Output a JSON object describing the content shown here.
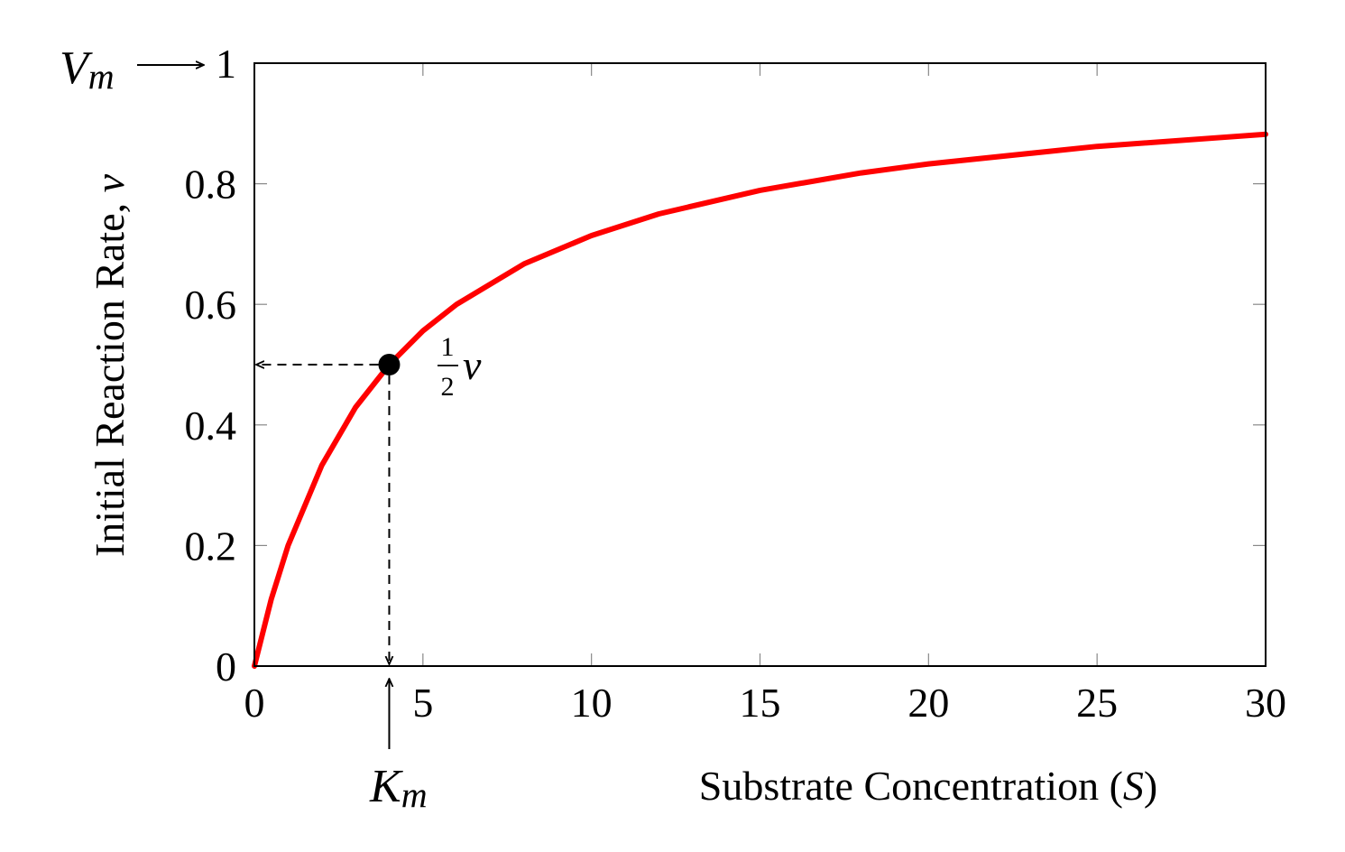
{
  "chart_data": {
    "type": "line",
    "xlabel": "Substrate Concentration (",
    "xlabel_var": "S",
    "xlabel_close": ")",
    "ylabel": "Initial Reaction Rate, ",
    "ylabel_var": "v",
    "xlim": [
      0,
      30
    ],
    "ylim": [
      0,
      1
    ],
    "x_ticks": [
      0,
      5,
      10,
      15,
      20,
      25,
      30
    ],
    "x_tick_labels": [
      "0",
      "5",
      "10",
      "15",
      "20",
      "25",
      "30"
    ],
    "y_ticks": [
      0,
      0.2,
      0.4,
      0.6,
      0.8,
      1
    ],
    "y_tick_labels": [
      "0",
      "0.2",
      "0.4",
      "0.6",
      "0.8",
      "1"
    ],
    "grid": false,
    "series": [
      {
        "color": "#ff0000",
        "x": [
          0,
          0.5,
          1,
          2,
          3,
          4,
          5,
          6,
          8,
          10,
          12,
          15,
          18,
          20,
          25,
          30
        ],
        "y": [
          0,
          0.111,
          0.2,
          0.333,
          0.429,
          0.5,
          0.556,
          0.6,
          0.667,
          0.714,
          0.75,
          0.789,
          0.818,
          0.833,
          0.862,
          0.882
        ]
      }
    ],
    "marker_point": {
      "x": 4,
      "y": 0.5
    },
    "annotations": {
      "half_v_num": "1",
      "half_v_den": "2",
      "half_v_var": "v",
      "km_main": "K",
      "km_sub": "m",
      "vm_main": "V",
      "vm_sub": "m"
    },
    "colors": {
      "curve": "#ff0000",
      "marker": "#000000",
      "axes": "#000000"
    }
  }
}
